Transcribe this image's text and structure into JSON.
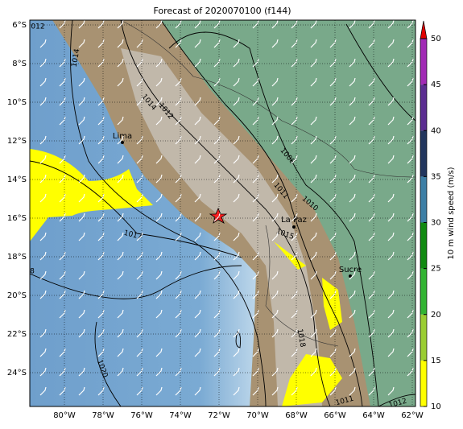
{
  "title": "Forecast of 2020070100 (f144)",
  "map": {
    "lat_ticks": [
      {
        "value": -6,
        "label": "6°S"
      },
      {
        "value": -8,
        "label": "8°S"
      },
      {
        "value": -10,
        "label": "10°S"
      },
      {
        "value": -12,
        "label": "12°S"
      },
      {
        "value": -14,
        "label": "14°S"
      },
      {
        "value": -16,
        "label": "16°S"
      },
      {
        "value": -18,
        "label": "18°S"
      },
      {
        "value": -20,
        "label": "20°S"
      },
      {
        "value": -22,
        "label": "22°S"
      },
      {
        "value": -24,
        "label": "24°S"
      }
    ],
    "lon_ticks": [
      {
        "value": -80,
        "label": "80°W"
      },
      {
        "value": -78,
        "label": "78°W"
      },
      {
        "value": -76,
        "label": "76°W"
      },
      {
        "value": -74,
        "label": "74°W"
      },
      {
        "value": -72,
        "label": "72°W"
      },
      {
        "value": -70,
        "label": "70°W"
      },
      {
        "value": -68,
        "label": "68°W"
      },
      {
        "value": -66,
        "label": "66°W"
      },
      {
        "value": -64,
        "label": "64°W"
      },
      {
        "value": -62,
        "label": "62°W"
      }
    ],
    "cities": [
      "Lima",
      "La Paz",
      "Sucre"
    ],
    "contour_labels": [
      "012",
      "1014",
      "1014",
      "1012",
      "1008",
      "1011",
      "1010",
      "1015",
      "1017",
      "8",
      "1018",
      "1020",
      "1011",
      "1012"
    ]
  },
  "colorbar": {
    "label": "10 m wind speed (m/s)",
    "ticks": [
      10,
      15,
      20,
      25,
      30,
      35,
      40,
      45,
      50
    ],
    "colors": [
      "#ffff00",
      "#9acd32",
      "#32b432",
      "#118a11",
      "#3d7fa6",
      "#22365e",
      "#5b2d91",
      "#a12ab5"
    ],
    "extend_color": "#e00000"
  }
}
